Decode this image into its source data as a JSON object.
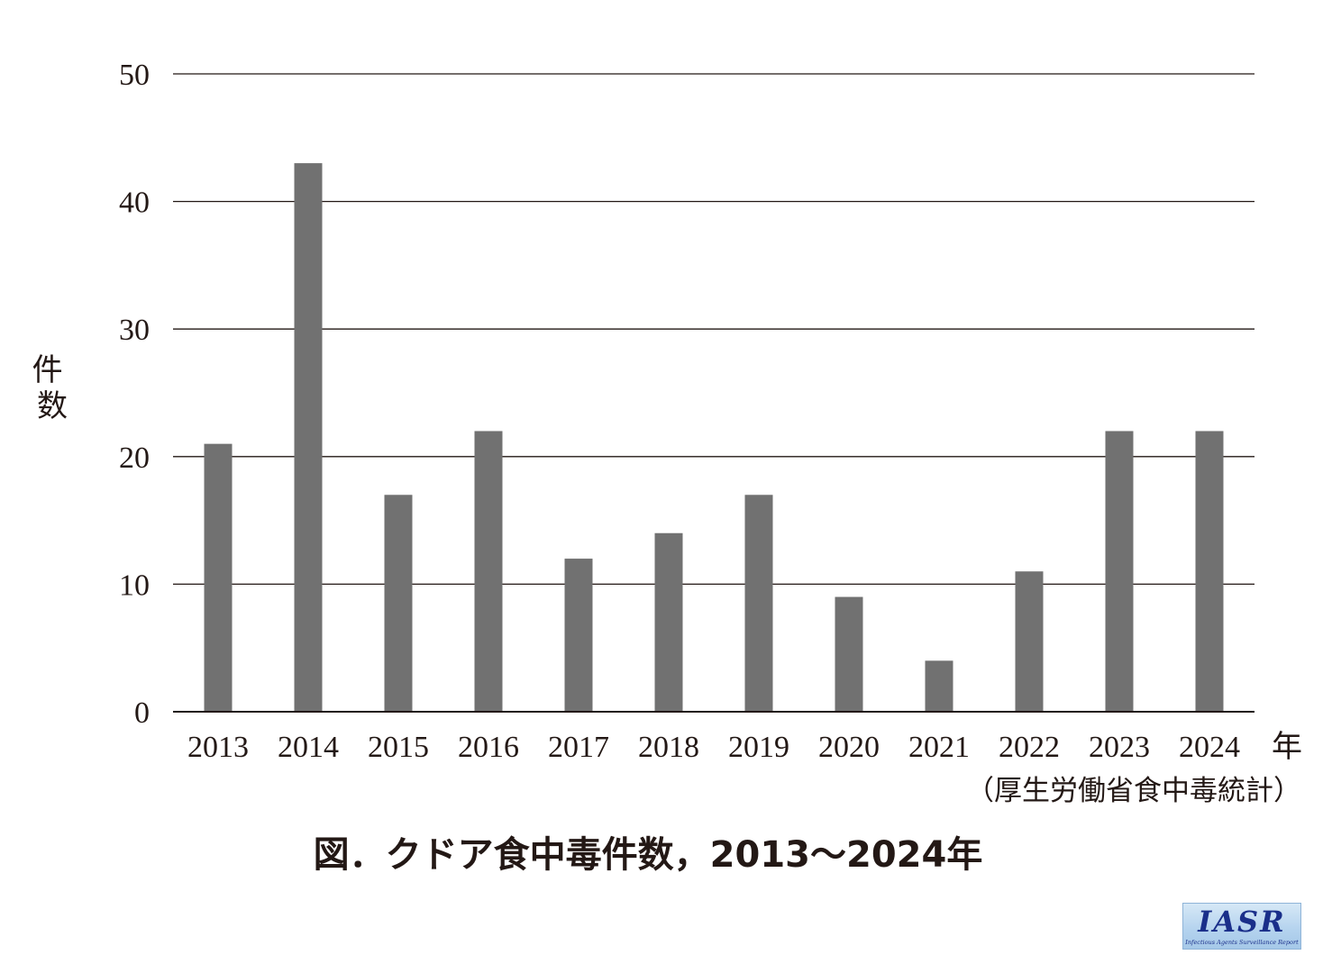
{
  "chart_data": {
    "type": "bar",
    "categories": [
      "2013",
      "2014",
      "2015",
      "2016",
      "2017",
      "2018",
      "2019",
      "2020",
      "2021",
      "2022",
      "2023",
      "2024"
    ],
    "values": [
      21,
      43,
      17,
      22,
      12,
      14,
      17,
      9,
      4,
      11,
      22,
      22
    ],
    "title": "図．クドア食中毒件数，2013〜2024年",
    "xlabel": "年",
    "ylabel": "件数",
    "ylim": [
      0,
      50
    ],
    "yticks": [
      "0",
      "10",
      "20",
      "30",
      "40",
      "50"
    ],
    "source_note": "（厚生労働省食中毒統計）",
    "grid": true,
    "bar_color": "#717171",
    "text_color": "#231815"
  },
  "logo": {
    "text": "IASR",
    "subtext": "Infectious Agents Surveillance Report",
    "color": "#1a2f8a"
  }
}
